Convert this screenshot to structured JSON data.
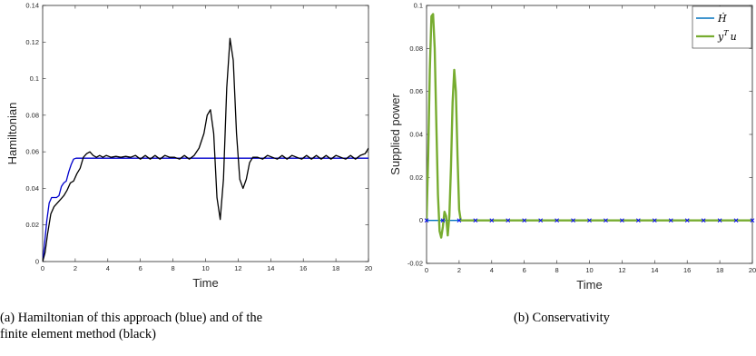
{
  "colors": {
    "blue_line": "#0000cc",
    "black_line": "#000000",
    "hdot": "#0072BD",
    "ytu": "#77AC30",
    "marker": "#0000ff"
  },
  "captions": {
    "left_line1": "(a) Hamiltonian of this approach (blue) and of the",
    "left_line2": "finite element method (black)",
    "right": "(b) Conservativity"
  },
  "chart_data": [
    {
      "type": "line",
      "xlabel": "Time",
      "ylabel": "Hamiltonian",
      "xlim": [
        0,
        20
      ],
      "ylim": [
        0,
        0.14
      ],
      "xticks": [
        0,
        2,
        4,
        6,
        8,
        10,
        12,
        14,
        16,
        18,
        20
      ],
      "yticks": [
        0,
        0.02,
        0.04,
        0.06,
        0.08,
        0.1,
        0.12,
        0.14
      ],
      "legend": "none",
      "grid": false,
      "series": [
        {
          "color": "#0000cc",
          "x": [
            0,
            0.1,
            0.25,
            0.4,
            0.55,
            0.7,
            0.85,
            1.0,
            1.15,
            1.3,
            1.45,
            1.6,
            1.75,
            1.9,
            2.05,
            2.2,
            3,
            5,
            10,
            15,
            20
          ],
          "y": [
            0,
            0.008,
            0.022,
            0.032,
            0.035,
            0.035,
            0.035,
            0.036,
            0.041,
            0.043,
            0.044,
            0.049,
            0.053,
            0.056,
            0.0565,
            0.0565,
            0.0565,
            0.0565,
            0.0565,
            0.0565,
            0.0565
          ]
        },
        {
          "color": "#000000",
          "x": [
            0,
            0.15,
            0.3,
            0.5,
            0.7,
            0.9,
            1.1,
            1.3,
            1.5,
            1.7,
            1.9,
            2.1,
            2.3,
            2.5,
            2.7,
            2.9,
            3.1,
            3.3,
            3.5,
            3.7,
            3.9,
            4.2,
            4.5,
            4.8,
            5.1,
            5.4,
            5.7,
            6.0,
            6.3,
            6.6,
            6.9,
            7.2,
            7.5,
            7.8,
            8.1,
            8.4,
            8.7,
            9.0,
            9.3,
            9.6,
            9.9,
            10.1,
            10.3,
            10.5,
            10.7,
            10.9,
            11.1,
            11.3,
            11.5,
            11.7,
            11.9,
            12.1,
            12.3,
            12.5,
            12.7,
            12.9,
            13.2,
            13.5,
            13.8,
            14.1,
            14.4,
            14.7,
            15.0,
            15.3,
            15.6,
            15.9,
            16.2,
            16.5,
            16.8,
            17.1,
            17.4,
            17.7,
            18.0,
            18.3,
            18.6,
            18.9,
            19.2,
            19.5,
            19.8,
            20.0
          ],
          "y": [
            0,
            0.005,
            0.015,
            0.026,
            0.03,
            0.032,
            0.034,
            0.036,
            0.039,
            0.043,
            0.044,
            0.048,
            0.051,
            0.057,
            0.059,
            0.06,
            0.058,
            0.057,
            0.058,
            0.057,
            0.058,
            0.057,
            0.0575,
            0.057,
            0.0575,
            0.057,
            0.058,
            0.056,
            0.058,
            0.056,
            0.058,
            0.056,
            0.058,
            0.057,
            0.057,
            0.056,
            0.058,
            0.056,
            0.058,
            0.062,
            0.07,
            0.08,
            0.083,
            0.07,
            0.035,
            0.023,
            0.045,
            0.095,
            0.122,
            0.11,
            0.07,
            0.045,
            0.04,
            0.045,
            0.054,
            0.057,
            0.057,
            0.056,
            0.058,
            0.057,
            0.056,
            0.058,
            0.056,
            0.058,
            0.057,
            0.056,
            0.058,
            0.056,
            0.058,
            0.056,
            0.058,
            0.056,
            0.058,
            0.057,
            0.056,
            0.058,
            0.056,
            0.058,
            0.059,
            0.062
          ]
        }
      ]
    },
    {
      "type": "line",
      "xlabel": "Time",
      "ylabel": "Supplied power",
      "xlim": [
        0,
        20
      ],
      "ylim": [
        -0.02,
        0.1
      ],
      "xticks": [
        0,
        2,
        4,
        6,
        8,
        10,
        12,
        14,
        16,
        18,
        20
      ],
      "yticks": [
        -0.02,
        0,
        0.02,
        0.04,
        0.06,
        0.08,
        0.1
      ],
      "legend": "top-right",
      "grid": false,
      "series": [
        {
          "name": "Ḣ",
          "color": "#0072BD",
          "marker": "x",
          "x": [
            0,
            1,
            2,
            3,
            4,
            5,
            6,
            7,
            8,
            9,
            10,
            11,
            12,
            13,
            14,
            15,
            16,
            17,
            18,
            19,
            20
          ],
          "y": [
            0,
            0,
            0,
            0,
            0,
            0,
            0,
            0,
            0,
            0,
            0,
            0,
            0,
            0,
            0,
            0,
            0,
            0,
            0,
            0,
            0
          ]
        },
        {
          "name": "y^T u",
          "color": "#77AC30",
          "x": [
            0,
            0.1,
            0.2,
            0.3,
            0.4,
            0.5,
            0.6,
            0.7,
            0.8,
            0.9,
            1.0,
            1.1,
            1.2,
            1.3,
            1.4,
            1.5,
            1.6,
            1.7,
            1.8,
            1.9,
            2.0,
            2.1,
            2.2,
            2.5,
            3,
            5,
            10,
            15,
            20
          ],
          "y": [
            0,
            0.03,
            0.07,
            0.095,
            0.096,
            0.08,
            0.045,
            0.012,
            -0.005,
            -0.008,
            -0.003,
            0.004,
            0.002,
            -0.007,
            0.002,
            0.025,
            0.055,
            0.07,
            0.06,
            0.03,
            0.005,
            0.0,
            0.0,
            0.0,
            0.0,
            0.0,
            0.0,
            0.0,
            0.0
          ]
        }
      ]
    }
  ]
}
